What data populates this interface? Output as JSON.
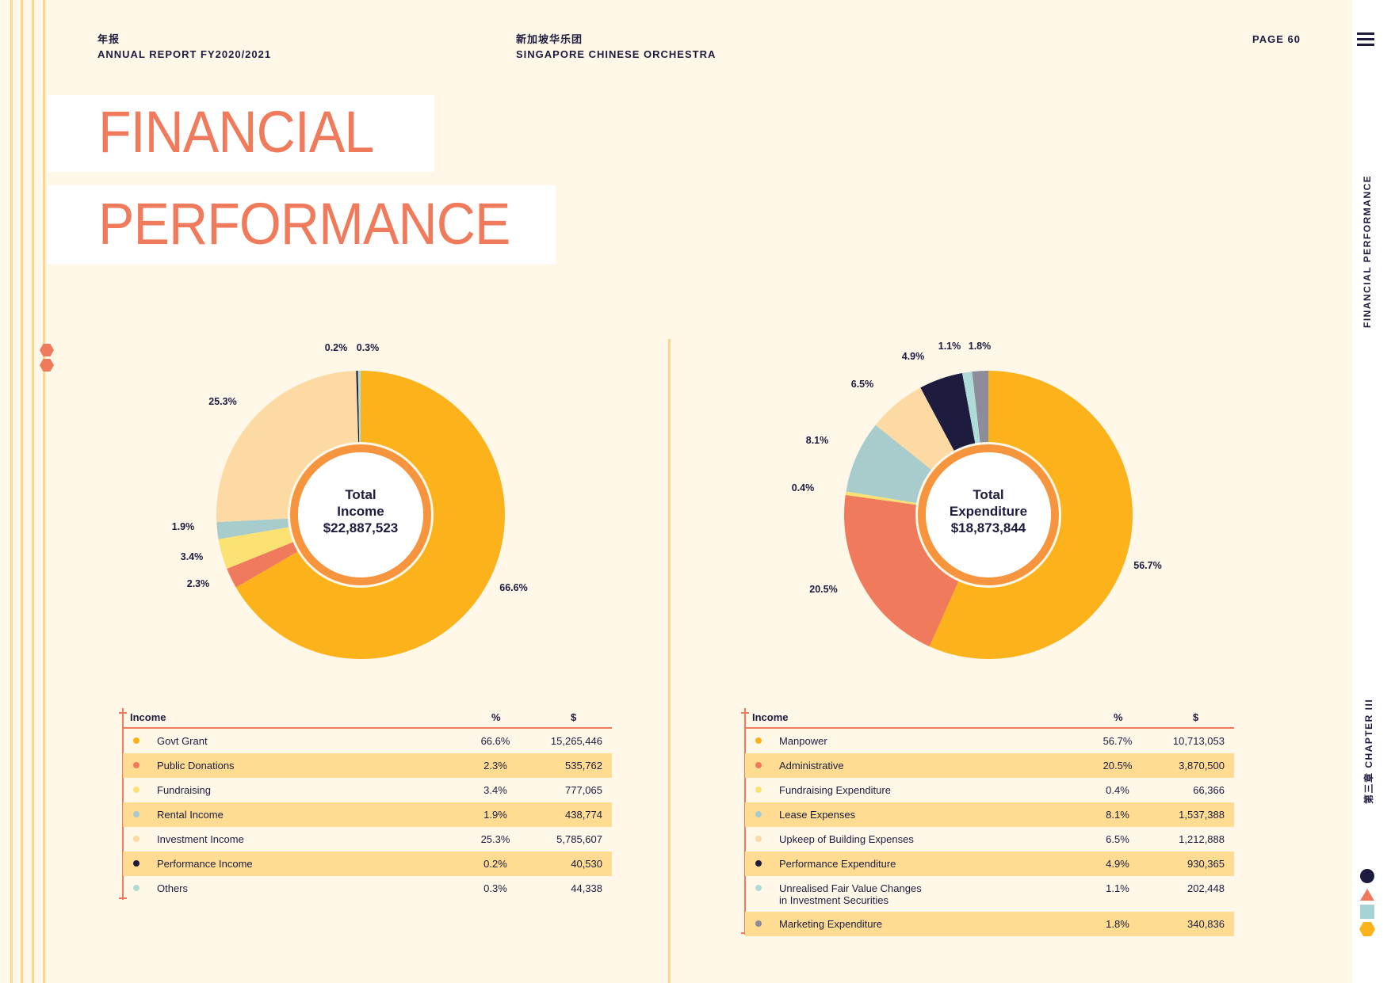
{
  "header": {
    "left_cn": "年报",
    "left_en": "ANNUAL REPORT FY2020/2021",
    "center_cn": "新加坡华乐团",
    "center_en": "SINGAPORE CHINESE ORCHESTRA",
    "page": "PAGE 60"
  },
  "title": {
    "line1": "FINANCIAL",
    "line2": "PERFORMANCE"
  },
  "sidebar": {
    "section": "FINANCIAL PERFORMANCE",
    "chapter": "第三章  CHAPTER III",
    "shape_colors": [
      "#1d1b3e",
      "#f07a5c",
      "#a8d3d6",
      "#fcb21a"
    ]
  },
  "colors": {
    "orange": "#fcb21a",
    "coral": "#f07a5c",
    "yellow": "#fbe171",
    "teal": "#a8cccc",
    "peach": "#fdd9a3",
    "navy": "#1d1b3e",
    "light_teal": "#b0dcd8",
    "grey": "#8c8c9a",
    "accent_ring": "#f58a2a",
    "row_highlight": "#ffdc92"
  },
  "chart_data": [
    {
      "type": "pie",
      "center_title": [
        "Total",
        "Income"
      ],
      "center_value": "$22,887,523",
      "slices": [
        {
          "label": "Govt Grant",
          "pct": 66.6,
          "pct_label": "66.6%",
          "value": "15,265,446",
          "color": "#fcb21a"
        },
        {
          "label": "Public Donations",
          "pct": 2.3,
          "pct_label": "2.3%",
          "value": "535,762",
          "color": "#f07a5c"
        },
        {
          "label": "Fundraising",
          "pct": 3.4,
          "pct_label": "3.4%",
          "value": "777,065",
          "color": "#fbe171"
        },
        {
          "label": "Rental Income",
          "pct": 1.9,
          "pct_label": "1.9%",
          "value": "438,774",
          "color": "#a8cccc"
        },
        {
          "label": "Investment Income",
          "pct": 25.3,
          "pct_label": "25.3%",
          "value": "5,785,607",
          "color": "#fdd9a3"
        },
        {
          "label": "Performance Income",
          "pct": 0.2,
          "pct_label": "0.2%",
          "value": "40,530",
          "color": "#1d1b3e"
        },
        {
          "label": "Others",
          "pct": 0.3,
          "pct_label": "0.3%",
          "value": "44,338",
          "color": "#b0dcd8"
        }
      ]
    },
    {
      "type": "pie",
      "center_title": [
        "Total",
        "Expenditure"
      ],
      "center_value": "$18,873,844",
      "slices": [
        {
          "label": "Manpower",
          "pct": 56.7,
          "pct_label": "56.7%",
          "value": "10,713,053",
          "color": "#fcb21a"
        },
        {
          "label": "Administrative",
          "pct": 20.5,
          "pct_label": "20.5%",
          "value": "3,870,500",
          "color": "#f07a5c"
        },
        {
          "label": "Fundraising Expenditure",
          "pct": 0.4,
          "pct_label": "0.4%",
          "value": "66,366",
          "color": "#fbe171"
        },
        {
          "label": "Lease Expenses",
          "pct": 8.1,
          "pct_label": "8.1%",
          "value": "1,537,388",
          "color": "#a8cccc"
        },
        {
          "label": "Upkeep of Building Expenses",
          "pct": 6.5,
          "pct_label": "6.5%",
          "value": "1,212,888",
          "color": "#fdd9a3"
        },
        {
          "label": "Performance Expenditure",
          "pct": 4.9,
          "pct_label": "4.9%",
          "value": "930,365",
          "color": "#1d1b3e"
        },
        {
          "label": "Unrealised Fair Value Changes\nin Investment Securities",
          "pct": 1.1,
          "pct_label": "1.1%",
          "value": "202,448",
          "color": "#b0dcd8"
        },
        {
          "label": "Marketing Expenditure",
          "pct": 1.8,
          "pct_label": "1.8%",
          "value": "340,836",
          "color": "#8c8c9a"
        }
      ]
    }
  ],
  "tables": [
    {
      "heading": "Income",
      "pct_header": "%",
      "val_header": "$"
    },
    {
      "heading": "Income",
      "pct_header": "%",
      "val_header": "$"
    }
  ]
}
